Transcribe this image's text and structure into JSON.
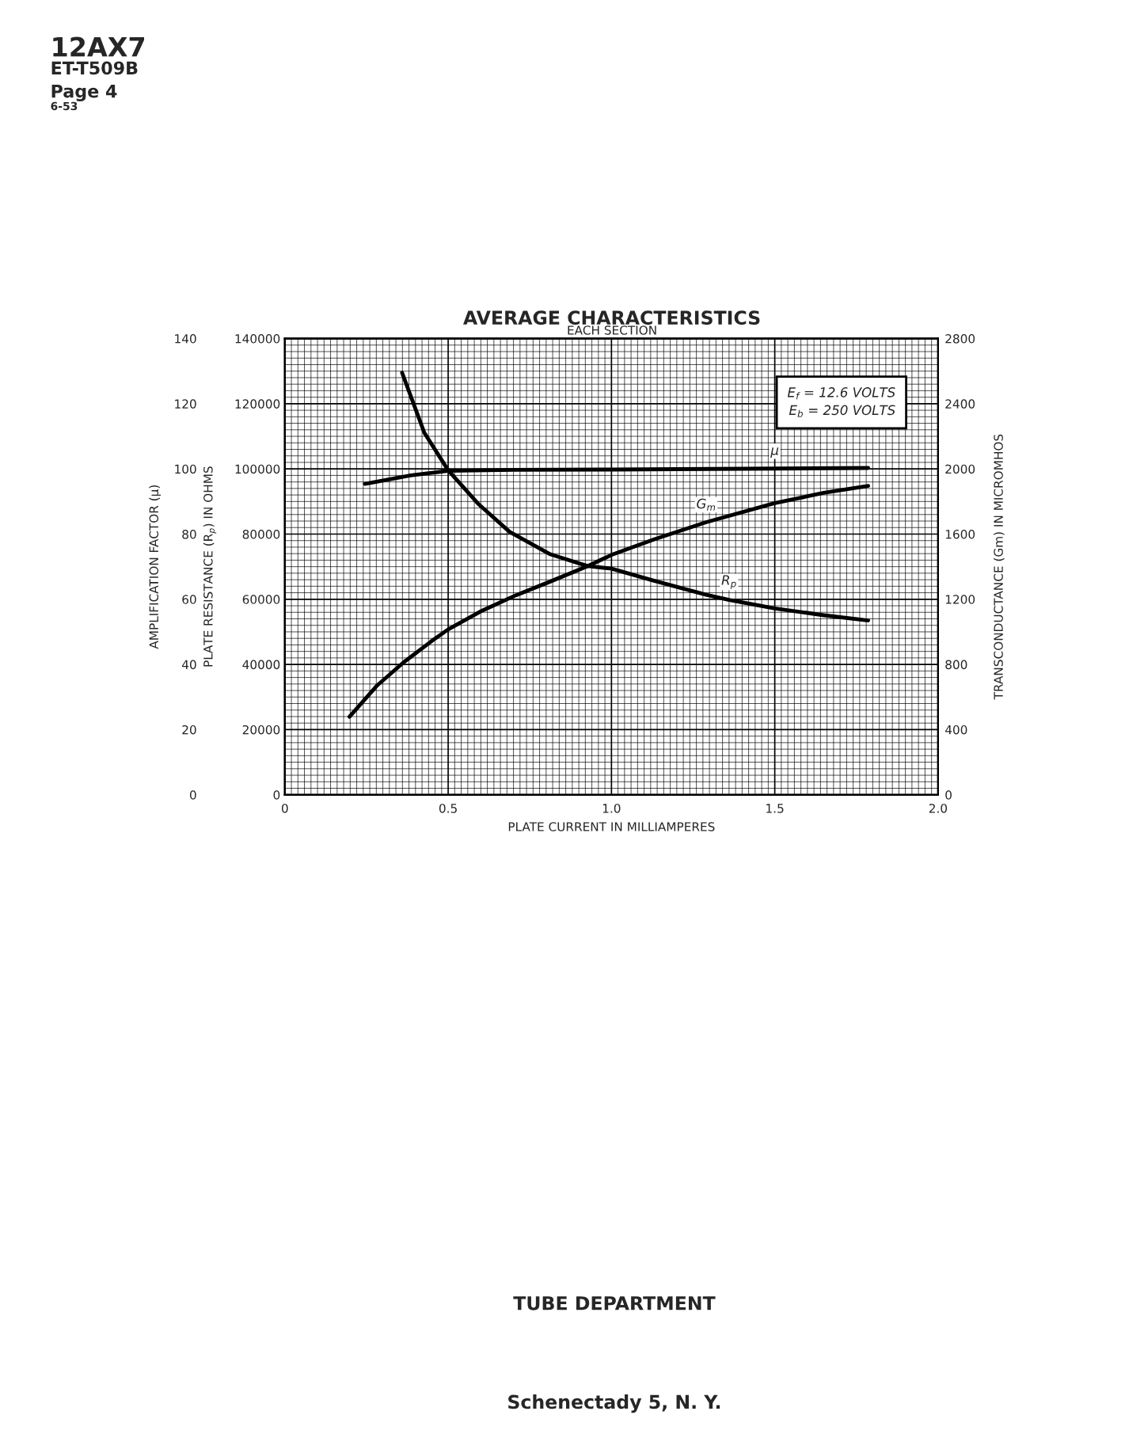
{
  "chart_data": {
    "type": "line",
    "title": "AVERAGE CHARACTERISTICS",
    "subtitle": "EACH SECTION",
    "xlabel": "PLATE CURRENT IN MILLIAMPERES",
    "ylabel": "AMPLIFICATION FACTOR (μ)",
    "y3label": "PLATE RESISTANCE (R$_{p}$) IN OHMS",
    "y2label": "TRANSCONDUCTANCE (Gm) IN MICROMHOS",
    "xlim": [
      0,
      2.0
    ],
    "xticks": [
      0,
      0.5,
      {
        "value": 1.0,
        "label": "1.0"
      },
      1.5,
      {
        "value": 2.0,
        "label": "2.0"
      }
    ],
    "ylim": [
      0,
      140
    ],
    "yticks": [
      0,
      20,
      40,
      60,
      80,
      100,
      120,
      140
    ],
    "y3lim": [
      0,
      140000
    ],
    "y3ticks": [
      {
        "value": 0,
        "label": "0"
      },
      20000,
      40000,
      60000,
      80000,
      100000,
      120000,
      140000
    ],
    "y2lim": [
      0,
      2800
    ],
    "y2ticks": [
      0,
      400,
      800,
      1200,
      1600,
      2000,
      2400,
      2800
    ],
    "grid": true,
    "legend": false,
    "line_style": "solid",
    "marker": "none",
    "series": [
      {
        "name": "μ",
        "color": "#000000",
        "axis": "y",
        "x": [
          0.245,
          0.385,
          0.5,
          0.7,
          1.0,
          1.5,
          1.786
        ],
        "values": [
          95.4,
          98.0,
          99.4,
          99.7,
          99.8,
          100.1,
          100.3
        ]
      },
      {
        "name": "R$_{p}$",
        "color": "#000000",
        "axis": "y3",
        "x": [
          0.359,
          0.427,
          0.5,
          0.594,
          0.688,
          0.813,
          0.927,
          1.0,
          1.13,
          1.29,
          1.36,
          1.5,
          1.65,
          1.786
        ],
        "values": [
          129500,
          111100,
          99600,
          89100,
          80700,
          73800,
          70200,
          69400,
          65700,
          61400,
          59800,
          57200,
          55100,
          53500
        ]
      },
      {
        "name": "G$_{m}$",
        "color": "#000000",
        "axis": "y2",
        "x": [
          0.198,
          0.281,
          0.365,
          0.448,
          0.5,
          0.604,
          0.708,
          0.813,
          0.927,
          1.0,
          1.13,
          1.29,
          1.5,
          1.65,
          1.786
        ],
        "values": [
          479,
          668,
          815,
          941,
          1015,
          1130,
          1225,
          1309,
          1403,
          1472,
          1567,
          1673,
          1790,
          1853,
          1896
        ]
      }
    ],
    "annotations": [
      "E$_{f}$ = 12.6 VOLTS",
      "E$_{b}$ = 250 VOLTS",
      "12AX7",
      "ET-T509B",
      "Page 4",
      "6-53",
      "TUBE DEPARTMENT",
      "Schenectady 5, N. Y."
    ]
  }
}
